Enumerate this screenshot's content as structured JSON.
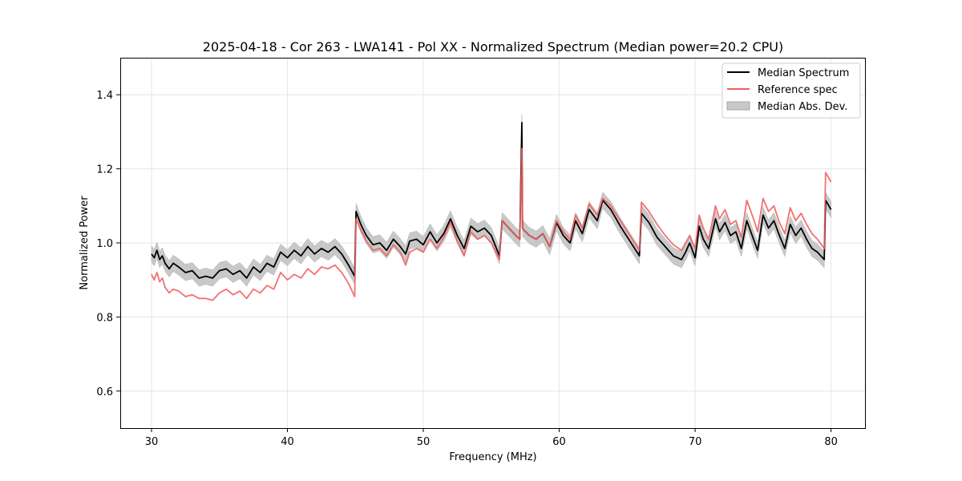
{
  "chart_data": {
    "type": "line",
    "title": "2025-04-18 - Cor 263 - LWA141 - Pol XX - Normalized Spectrum (Median power=20.2 CPU)",
    "xlabel": "Frequency (MHz)",
    "ylabel": "Normalized Power",
    "xlim": [
      27.7,
      82.5
    ],
    "ylim": [
      0.5,
      1.5
    ],
    "xticks": [
      30,
      40,
      50,
      60,
      70,
      80
    ],
    "yticks": [
      0.6,
      0.8,
      1.0,
      1.2,
      1.4
    ],
    "grid": true,
    "legend_position": "top-right",
    "legend": [
      "Median Spectrum",
      "Reference spec",
      "Median Abs. Dev."
    ],
    "mad_halfwidth": 0.022,
    "series": [
      {
        "name": "Median Spectrum",
        "color": "#000000",
        "x": [
          30.0,
          30.2,
          30.4,
          30.6,
          30.8,
          31.0,
          31.3,
          31.6,
          32.0,
          32.5,
          33.0,
          33.5,
          34.0,
          34.5,
          35.0,
          35.5,
          36.0,
          36.5,
          37.0,
          37.5,
          38.0,
          38.5,
          39.0,
          39.5,
          40.0,
          40.5,
          41.0,
          41.5,
          42.0,
          42.5,
          43.0,
          43.5,
          44.0,
          44.5,
          44.95,
          45.05,
          45.4,
          45.8,
          46.3,
          46.8,
          47.3,
          47.8,
          48.3,
          48.7,
          49.0,
          49.5,
          50.0,
          50.5,
          51.0,
          51.5,
          52.0,
          52.5,
          53.0,
          53.5,
          54.0,
          54.5,
          55.0,
          55.6,
          55.8,
          56.3,
          56.8,
          57.1,
          57.25,
          57.3,
          57.4,
          57.8,
          58.3,
          58.8,
          59.3,
          59.8,
          60.3,
          60.8,
          61.2,
          61.7,
          62.2,
          62.8,
          63.2,
          63.8,
          64.5,
          65.2,
          65.9,
          66.05,
          66.6,
          67.2,
          67.8,
          68.4,
          69.0,
          69.3,
          69.6,
          70.0,
          70.3,
          70.6,
          71.0,
          71.5,
          71.8,
          72.2,
          72.6,
          73.0,
          73.4,
          73.8,
          74.3,
          74.6,
          75.0,
          75.4,
          75.8,
          76.2,
          76.6,
          77.0,
          77.4,
          77.8,
          78.2,
          78.6,
          79.0,
          79.5,
          79.6,
          80.0
        ],
        "values": [
          0.97,
          0.96,
          0.98,
          0.955,
          0.965,
          0.945,
          0.93,
          0.945,
          0.935,
          0.92,
          0.925,
          0.905,
          0.91,
          0.905,
          0.925,
          0.93,
          0.915,
          0.925,
          0.905,
          0.935,
          0.92,
          0.945,
          0.935,
          0.975,
          0.96,
          0.98,
          0.965,
          0.99,
          0.97,
          0.985,
          0.975,
          0.99,
          0.97,
          0.94,
          0.91,
          1.085,
          1.05,
          1.02,
          0.995,
          1.0,
          0.98,
          1.01,
          0.99,
          0.97,
          1.005,
          1.01,
          0.995,
          1.03,
          1.0,
          1.025,
          1.065,
          1.02,
          0.985,
          1.045,
          1.03,
          1.04,
          1.02,
          0.965,
          1.06,
          1.04,
          1.02,
          1.01,
          1.325,
          1.04,
          1.035,
          1.02,
          1.01,
          1.025,
          0.99,
          1.055,
          1.02,
          1.0,
          1.06,
          1.025,
          1.09,
          1.06,
          1.115,
          1.09,
          1.045,
          1.005,
          0.965,
          1.08,
          1.055,
          1.015,
          0.99,
          0.965,
          0.955,
          0.975,
          1.0,
          0.96,
          1.045,
          1.01,
          0.985,
          1.065,
          1.03,
          1.055,
          1.02,
          1.03,
          0.985,
          1.06,
          1.01,
          0.98,
          1.075,
          1.04,
          1.06,
          1.02,
          0.985,
          1.05,
          1.02,
          1.04,
          1.01,
          0.985,
          0.975,
          0.955,
          1.115,
          1.09
        ]
      },
      {
        "name": "Reference spec",
        "color": "#f06060",
        "x": [
          30.0,
          30.2,
          30.4,
          30.6,
          30.8,
          31.0,
          31.3,
          31.6,
          32.0,
          32.5,
          33.0,
          33.5,
          34.0,
          34.5,
          35.0,
          35.5,
          36.0,
          36.5,
          37.0,
          37.5,
          38.0,
          38.5,
          39.0,
          39.5,
          40.0,
          40.5,
          41.0,
          41.5,
          42.0,
          42.5,
          43.0,
          43.5,
          44.0,
          44.5,
          44.95,
          45.05,
          45.4,
          45.8,
          46.3,
          46.8,
          47.3,
          47.8,
          48.3,
          48.7,
          49.0,
          49.5,
          50.0,
          50.5,
          51.0,
          51.5,
          52.0,
          52.5,
          53.0,
          53.5,
          54.0,
          54.5,
          55.0,
          55.6,
          55.8,
          56.3,
          56.8,
          57.1,
          57.25,
          57.3,
          57.4,
          57.8,
          58.3,
          58.8,
          59.3,
          59.8,
          60.3,
          60.8,
          61.2,
          61.7,
          62.2,
          62.8,
          63.2,
          63.8,
          64.5,
          65.2,
          65.9,
          66.05,
          66.6,
          67.2,
          67.8,
          68.4,
          69.0,
          69.3,
          69.6,
          70.0,
          70.3,
          70.6,
          71.0,
          71.5,
          71.8,
          72.2,
          72.6,
          73.0,
          73.4,
          73.8,
          74.3,
          74.6,
          75.0,
          75.4,
          75.8,
          76.2,
          76.6,
          77.0,
          77.4,
          77.8,
          78.2,
          78.6,
          79.0,
          79.5,
          79.6,
          80.0
        ],
        "values": [
          0.915,
          0.9,
          0.92,
          0.895,
          0.905,
          0.88,
          0.865,
          0.875,
          0.87,
          0.855,
          0.86,
          0.85,
          0.85,
          0.845,
          0.865,
          0.875,
          0.86,
          0.87,
          0.85,
          0.875,
          0.865,
          0.885,
          0.875,
          0.92,
          0.9,
          0.915,
          0.905,
          0.93,
          0.915,
          0.935,
          0.93,
          0.94,
          0.92,
          0.89,
          0.855,
          1.065,
          1.035,
          1.005,
          0.98,
          0.985,
          0.965,
          0.995,
          0.975,
          0.94,
          0.975,
          0.985,
          0.975,
          1.01,
          0.985,
          1.015,
          1.055,
          1.005,
          0.965,
          1.03,
          1.01,
          1.02,
          1.0,
          0.955,
          1.06,
          1.04,
          1.02,
          1.01,
          1.255,
          1.04,
          1.035,
          1.02,
          1.01,
          1.025,
          0.99,
          1.06,
          1.03,
          1.01,
          1.075,
          1.04,
          1.105,
          1.075,
          1.12,
          1.1,
          1.06,
          1.02,
          0.98,
          1.11,
          1.085,
          1.05,
          1.02,
          0.995,
          0.98,
          1.0,
          1.02,
          0.985,
          1.075,
          1.04,
          1.01,
          1.1,
          1.065,
          1.09,
          1.05,
          1.06,
          1.015,
          1.115,
          1.065,
          1.03,
          1.12,
          1.085,
          1.1,
          1.055,
          1.025,
          1.095,
          1.06,
          1.08,
          1.05,
          1.025,
          1.01,
          0.985,
          1.19,
          1.165
        ]
      }
    ]
  }
}
